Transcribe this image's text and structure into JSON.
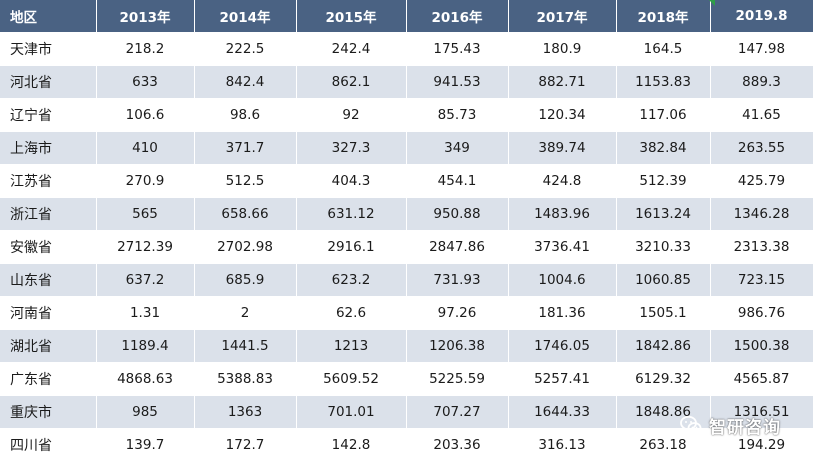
{
  "table": {
    "headers": [
      "地区",
      "2013年",
      "2014年",
      "2015年",
      "2016年",
      "2017年",
      "2018年",
      "2019.8"
    ],
    "rows": [
      [
        "天津市",
        "218.2",
        "222.5",
        "242.4",
        "175.43",
        "180.9",
        "164.5",
        "147.98"
      ],
      [
        "河北省",
        "633",
        "842.4",
        "862.1",
        "941.53",
        "882.71",
        "1153.83",
        "889.3"
      ],
      [
        "辽宁省",
        "106.6",
        "98.6",
        "92",
        "85.73",
        "120.34",
        "117.06",
        "41.65"
      ],
      [
        "上海市",
        "410",
        "371.7",
        "327.3",
        "349",
        "389.74",
        "382.84",
        "263.55"
      ],
      [
        "江苏省",
        "270.9",
        "512.5",
        "404.3",
        "454.1",
        "424.8",
        "512.39",
        "425.79"
      ],
      [
        "浙江省",
        "565",
        "658.66",
        "631.12",
        "950.88",
        "1483.96",
        "1613.24",
        "1346.28"
      ],
      [
        "安徽省",
        "2712.39",
        "2702.98",
        "2916.1",
        "2847.86",
        "3736.41",
        "3210.33",
        "2313.38"
      ],
      [
        "山东省",
        "637.2",
        "685.9",
        "623.2",
        "731.93",
        "1004.6",
        "1060.85",
        "723.15"
      ],
      [
        "河南省",
        "1.31",
        "2",
        "62.6",
        "97.26",
        "181.36",
        "1505.1",
        "986.76"
      ],
      [
        "湖北省",
        "1189.4",
        "1441.5",
        "1213",
        "1206.38",
        "1746.05",
        "1842.86",
        "1500.38"
      ],
      [
        "广东省",
        "4868.63",
        "5388.83",
        "5609.52",
        "5225.59",
        "5257.41",
        "6129.32",
        "4565.87"
      ],
      [
        "重庆市",
        "985",
        "1363",
        "701.01",
        "707.27",
        "1644.33",
        "1848.86",
        "1316.51"
      ],
      [
        "四川省",
        "139.7",
        "172.7",
        "142.8",
        "203.36",
        "316.13",
        "263.18",
        "194.29"
      ]
    ]
  },
  "watermark": {
    "text": "智研咨询",
    "icon": "wechat-icon"
  },
  "colors": {
    "header_bg": "#4a6283",
    "header_text": "#ffffff",
    "row_even_bg": "#dbe1ea",
    "row_odd_bg": "#ffffff",
    "marker": "#2e9e47"
  }
}
